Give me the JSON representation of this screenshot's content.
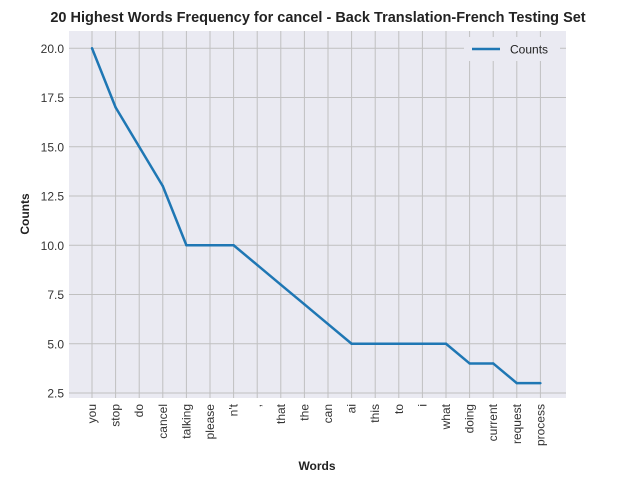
{
  "chart_data": {
    "type": "line",
    "title": "20 Highest Words Frequency for cancel - Back Translation-French Testing Set",
    "xlabel": "Words",
    "ylabel": "Counts",
    "categories": [
      "you",
      "stop",
      "do",
      "cancel",
      "talking",
      "please",
      "n't",
      ",",
      "that",
      "the",
      "can",
      "ai",
      "this",
      "to",
      "i",
      "what",
      "doing",
      "current",
      "request",
      "process"
    ],
    "series": [
      {
        "name": "Counts",
        "values": [
          20,
          17,
          15,
          13,
          10,
          10,
          10,
          9,
          8,
          7,
          6,
          5,
          5,
          5,
          5,
          5,
          4,
          4,
          3,
          3
        ],
        "color": "#1f77b4"
      }
    ],
    "ylim": [
      2.5,
      20.0
    ],
    "yticks": [
      "2.5",
      "5.0",
      "7.5",
      "10.0",
      "12.5",
      "15.0",
      "17.5",
      "20.0"
    ],
    "grid": true,
    "legend_position": "top-right",
    "background_color": "#eaeaf2",
    "grid_color": "#c0c0c0"
  }
}
